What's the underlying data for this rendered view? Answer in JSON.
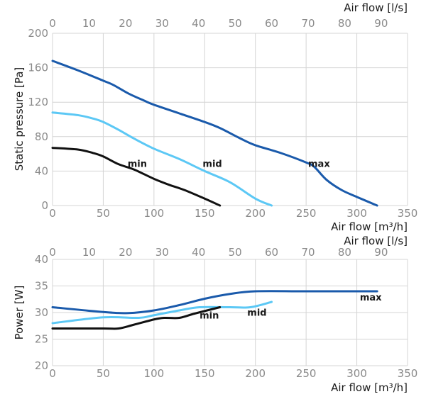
{
  "chart_data": [
    {
      "type": "line",
      "ylabel": "Static pressure [Pa]",
      "xlabel": "Air flow [m³/h]",
      "x2label": "Air flow [l/s]",
      "xlim": [
        0,
        350
      ],
      "ylim": [
        0,
        200
      ],
      "xticks": [
        0,
        50,
        100,
        150,
        200,
        250,
        300,
        350
      ],
      "yticks": [
        0,
        40,
        80,
        120,
        160,
        200
      ],
      "x2ticks": [
        0,
        10,
        20,
        30,
        40,
        50,
        60,
        70,
        80,
        90
      ],
      "grid": true,
      "series": [
        {
          "name": "max",
          "color": "#1a5aab",
          "label_at": [
            252,
            45
          ],
          "points": [
            [
              0,
              168
            ],
            [
              25,
              157
            ],
            [
              50,
              145
            ],
            [
              60,
              140
            ],
            [
              75,
              130
            ],
            [
              90,
              122
            ],
            [
              100,
              117
            ],
            [
              125,
              107
            ],
            [
              150,
              97
            ],
            [
              165,
              90
            ],
            [
              185,
              78
            ],
            [
              200,
              70
            ],
            [
              225,
              61
            ],
            [
              250,
              50
            ],
            [
              258,
              45
            ],
            [
              270,
              30
            ],
            [
              285,
              18
            ],
            [
              300,
              10
            ],
            [
              320,
              0
            ]
          ]
        },
        {
          "name": "mid",
          "color": "#5cc8f5",
          "label_at": [
            148,
            45
          ],
          "points": [
            [
              0,
              108
            ],
            [
              25,
              105
            ],
            [
              40,
              101
            ],
            [
              50,
              97
            ],
            [
              65,
              88
            ],
            [
              80,
              78
            ],
            [
              100,
              66
            ],
            [
              125,
              54
            ],
            [
              150,
              40
            ],
            [
              175,
              27
            ],
            [
              200,
              8
            ],
            [
              216,
              0
            ]
          ]
        },
        {
          "name": "min",
          "color": "#111111",
          "label_at": [
            74,
            45
          ],
          "points": [
            [
              0,
              67
            ],
            [
              25,
              65
            ],
            [
              40,
              61
            ],
            [
              50,
              57
            ],
            [
              65,
              48
            ],
            [
              80,
              42
            ],
            [
              100,
              31
            ],
            [
              115,
              24
            ],
            [
              130,
              18
            ],
            [
              150,
              8
            ],
            [
              165,
              0
            ]
          ]
        }
      ]
    },
    {
      "type": "line",
      "ylabel": "Power [W]",
      "xlabel": "Air flow [m³/h]",
      "x2label": "Air flow [l/s]",
      "xlim": [
        0,
        350
      ],
      "ylim": [
        20,
        40
      ],
      "xticks": [
        0,
        50,
        100,
        150,
        200,
        250,
        300,
        350
      ],
      "yticks": [
        20,
        25,
        30,
        35,
        40
      ],
      "x2ticks": [
        0,
        10,
        20,
        30,
        40,
        50,
        60,
        70,
        80,
        90
      ],
      "grid": true,
      "series": [
        {
          "name": "max",
          "color": "#1a5aab",
          "label_at": [
            303,
            32.3
          ],
          "points": [
            [
              0,
              31
            ],
            [
              50,
              30.1
            ],
            [
              75,
              29.9
            ],
            [
              100,
              30.4
            ],
            [
              125,
              31.4
            ],
            [
              150,
              32.6
            ],
            [
              175,
              33.5
            ],
            [
              200,
              34
            ],
            [
              250,
              34
            ],
            [
              320,
              34
            ]
          ]
        },
        {
          "name": "mid",
          "color": "#5cc8f5",
          "label_at": [
            192,
            29.4
          ],
          "points": [
            [
              0,
              28
            ],
            [
              50,
              29.1
            ],
            [
              85,
              29
            ],
            [
              100,
              29.5
            ],
            [
              125,
              30.4
            ],
            [
              145,
              31
            ],
            [
              175,
              31
            ],
            [
              195,
              31
            ],
            [
              216,
              32
            ]
          ]
        },
        {
          "name": "min",
          "color": "#111111",
          "label_at": [
            145,
            28.9
          ],
          "points": [
            [
              0,
              27
            ],
            [
              50,
              27
            ],
            [
              65,
              27
            ],
            [
              80,
              27.7
            ],
            [
              100,
              28.7
            ],
            [
              110,
              29
            ],
            [
              125,
              29
            ],
            [
              140,
              29.8
            ],
            [
              165,
              31
            ]
          ]
        }
      ]
    }
  ]
}
